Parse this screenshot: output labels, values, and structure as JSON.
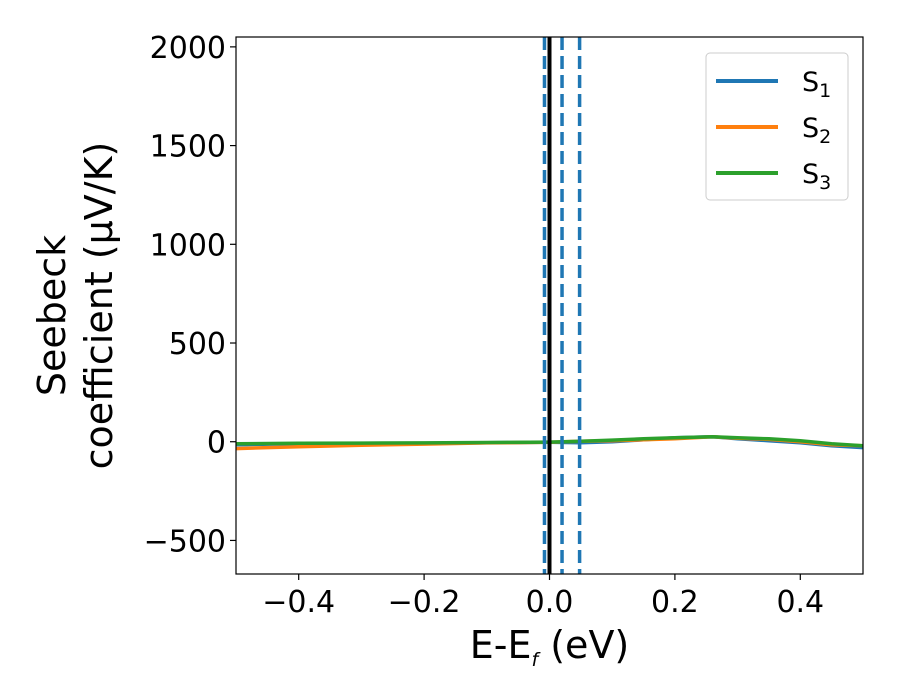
{
  "chart_data": {
    "type": "line",
    "xlabel": {
      "main": "E-E",
      "sub": "f",
      "tail": " (eV)"
    },
    "ylabel": {
      "line1": "Seebeck",
      "line2": "coefficient  (μV/K)"
    },
    "xlim": [
      -0.5,
      0.5
    ],
    "ylim": [
      -670,
      2050
    ],
    "x_ticks": [
      {
        "value": -0.4,
        "label": "−0.4"
      },
      {
        "value": -0.2,
        "label": "−0.2"
      },
      {
        "value": 0.0,
        "label": "0.0"
      },
      {
        "value": 0.2,
        "label": "0.2"
      },
      {
        "value": 0.4,
        "label": "0.4"
      }
    ],
    "y_ticks": [
      {
        "value": -500,
        "label": "−500"
      },
      {
        "value": 0,
        "label": "0"
      },
      {
        "value": 500,
        "label": "500"
      },
      {
        "value": 1000,
        "label": "1000"
      },
      {
        "value": 1500,
        "label": "1500"
      },
      {
        "value": 2000,
        "label": "2000"
      }
    ],
    "grid": false,
    "legend_position": "top-right",
    "series": [
      {
        "name": "S",
        "subscript": "1",
        "color": "#1f77b4",
        "x": [
          -0.5,
          -0.4,
          -0.3,
          -0.2,
          -0.1,
          0.0,
          0.05,
          0.1,
          0.15,
          0.2,
          0.26,
          0.3,
          0.35,
          0.4,
          0.45,
          0.5
        ],
        "y": [
          -15,
          -10,
          -10,
          -8,
          -5,
          -3,
          -5,
          0,
          10,
          20,
          25,
          15,
          5,
          -5,
          -20,
          -30
        ]
      },
      {
        "name": "S",
        "subscript": "2",
        "color": "#ff7f0e",
        "x": [
          -0.5,
          -0.4,
          -0.3,
          -0.2,
          -0.1,
          0.0,
          0.05,
          0.1,
          0.15,
          0.2,
          0.26,
          0.3,
          0.35,
          0.4,
          0.45,
          0.5
        ],
        "y": [
          -35,
          -25,
          -18,
          -12,
          -6,
          -3,
          2,
          5,
          10,
          15,
          25,
          18,
          12,
          0,
          -15,
          -20
        ]
      },
      {
        "name": "S",
        "subscript": "3",
        "color": "#2ca02c",
        "x": [
          -0.5,
          -0.4,
          -0.3,
          -0.2,
          -0.1,
          0.0,
          0.05,
          0.1,
          0.15,
          0.2,
          0.26,
          0.3,
          0.35,
          0.4,
          0.45,
          0.5
        ],
        "y": [
          -10,
          -8,
          -7,
          -6,
          -4,
          -2,
          2,
          8,
          15,
          20,
          25,
          20,
          15,
          5,
          -10,
          -20
        ]
      }
    ],
    "vertical_lines": [
      {
        "x": 0.0,
        "color": "#000000",
        "style": "solid"
      },
      {
        "x": -0.008,
        "color": "#1f77b4",
        "style": "dashed"
      },
      {
        "x": 0.02,
        "color": "#1f77b4",
        "style": "dashed"
      },
      {
        "x": 0.048,
        "color": "#1f77b4",
        "style": "dashed"
      }
    ]
  }
}
